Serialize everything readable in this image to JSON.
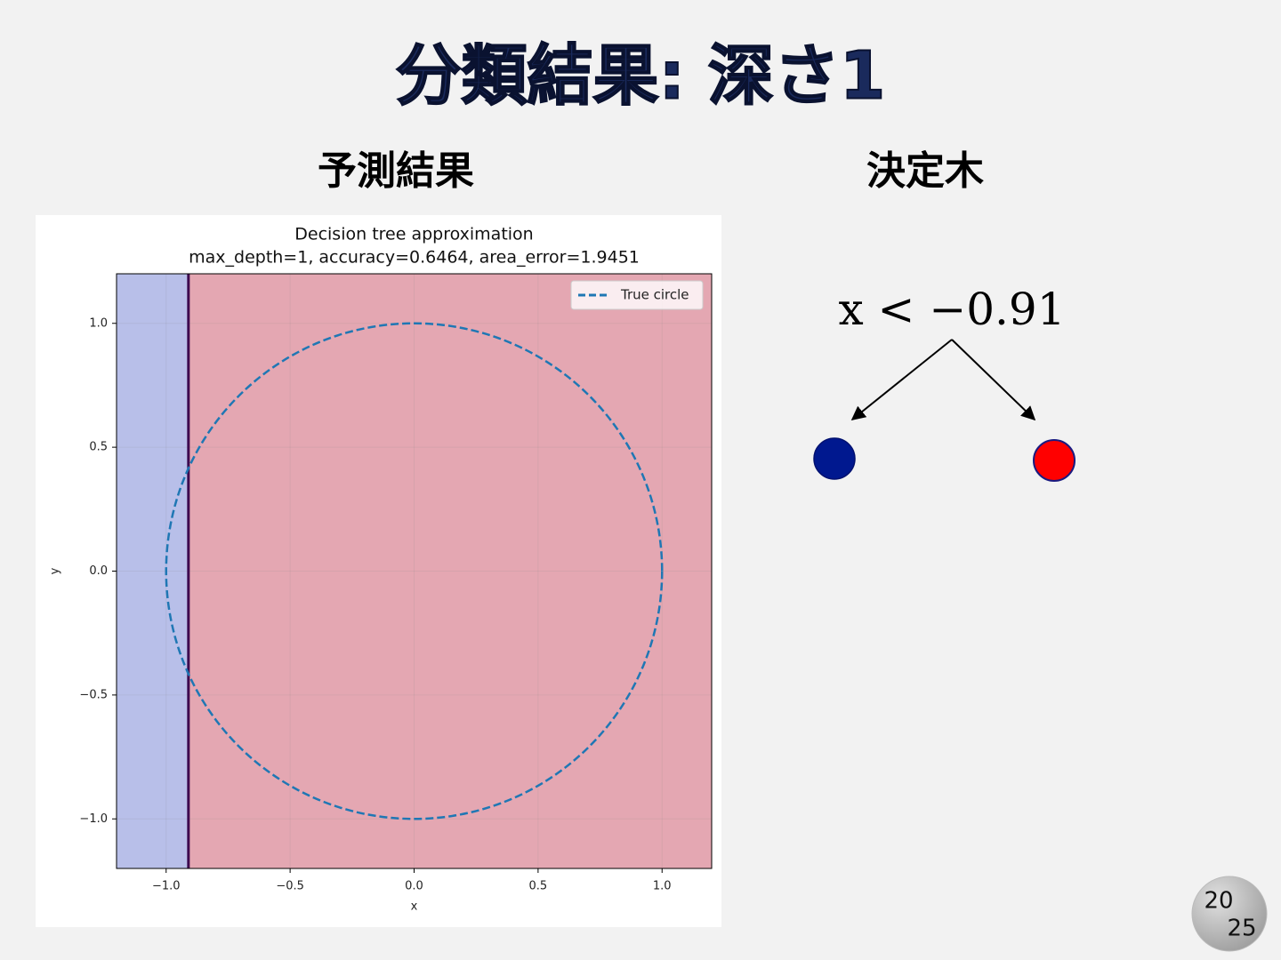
{
  "slide": {
    "title": "分類結果: 深さ1",
    "left_heading": "予測結果",
    "right_heading": "決定木",
    "badge": [
      "20",
      "25"
    ]
  },
  "chart_data": {
    "type": "decision_boundary",
    "title": "Decision tree approximation",
    "subtitle": "max_depth=1, accuracy=0.6464, area_error=1.9451",
    "x_label": "x",
    "y_label": "y",
    "xlim": [
      -1.2,
      1.2
    ],
    "ylim": [
      -1.2,
      1.2
    ],
    "xticks": [
      {
        "value": -1.0,
        "label": "−1.0"
      },
      {
        "value": -0.5,
        "label": "−0.5"
      },
      {
        "value": 0.0,
        "label": "0.0"
      },
      0.5,
      {
        "value": 1.0,
        "label": "1.0"
      }
    ],
    "yticks": [
      {
        "value": -1.0,
        "label": "−1.0"
      },
      {
        "value": -0.5,
        "label": "−0.5"
      },
      {
        "value": 0.0,
        "label": "0.0"
      },
      0.5,
      {
        "value": 1.0,
        "label": "1.0"
      }
    ],
    "grid": true,
    "threshold": -0.91,
    "region_colors": [
      "#b8bfe9",
      "#e4a7b2"
    ],
    "series": [
      {
        "name": "True circle",
        "color": "#1f77b4",
        "center": [
          0,
          0
        ],
        "radius": 1
      }
    ],
    "legend": "upper right"
  },
  "tree": {
    "root": "x < −0.91",
    "leaves": [
      {
        "color": "#00188f"
      },
      {
        "color": "#ff0000"
      }
    ]
  }
}
